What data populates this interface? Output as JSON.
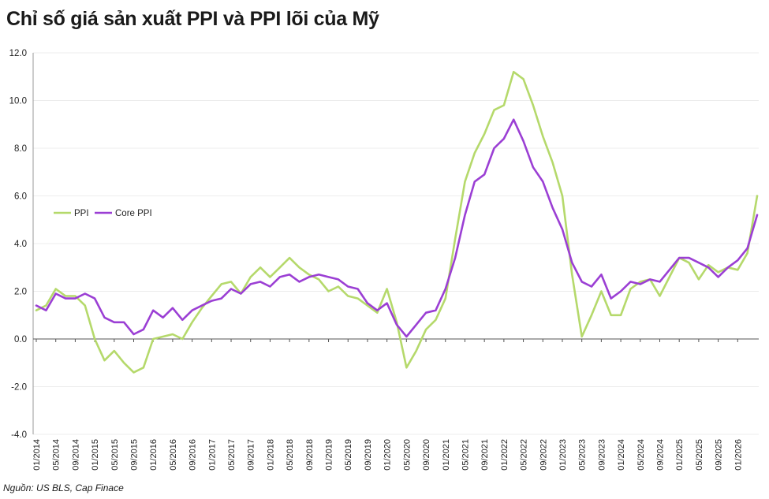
{
  "title": "Chỉ số giá sản xuất PPI và PPI lõi của Mỹ",
  "source": "Nguồn: US BLS, Cap Finace",
  "chart_data": {
    "type": "line",
    "title": "Chỉ số giá sản xuất PPI và PPI lõi của Mỹ",
    "xlabel": "",
    "ylabel": "",
    "ylim": [
      -4.0,
      12.0
    ],
    "yticks": [
      -4.0,
      -2.0,
      0.0,
      2.0,
      4.0,
      6.0,
      8.0,
      10.0,
      12.0
    ],
    "ytick_labels": [
      "-4.0",
      "-2.0",
      "0.0",
      "2.0",
      "4.0",
      "6.0",
      "8.0",
      "10.0",
      "12.0"
    ],
    "x_start": "2014-01",
    "x_end": "2026-05",
    "xtick_labels": [
      "01/2014",
      "05/2014",
      "09/2014",
      "01/2015",
      "05/2015",
      "09/2015",
      "01/2016",
      "05/2016",
      "09/2016",
      "01/2017",
      "05/2017",
      "09/2017",
      "01/2018",
      "05/2018",
      "09/2018",
      "01/2019",
      "05/2019",
      "09/2019",
      "01/2020",
      "05/2020",
      "09/2020",
      "01/2021",
      "05/2021",
      "09/2021",
      "01/2022",
      "05/2022",
      "09/2022",
      "01/2023",
      "05/2023",
      "09/2023",
      "01/2024",
      "05/2024",
      "09/2024",
      "01/2025",
      "05/2025",
      "09/2025",
      "01/2026"
    ],
    "grid": true,
    "legend": "left-middle",
    "colors": {
      "PPI": "#b5d96b",
      "Core PPI": "#9b3fd4"
    },
    "series": [
      {
        "name": "PPI",
        "x": [
          "2014-01",
          "2014-03",
          "2014-05",
          "2014-07",
          "2014-09",
          "2014-11",
          "2015-01",
          "2015-03",
          "2015-05",
          "2015-07",
          "2015-09",
          "2015-11",
          "2016-01",
          "2016-03",
          "2016-05",
          "2016-07",
          "2016-09",
          "2016-11",
          "2017-01",
          "2017-03",
          "2017-05",
          "2017-07",
          "2017-09",
          "2017-11",
          "2018-01",
          "2018-03",
          "2018-05",
          "2018-07",
          "2018-09",
          "2018-11",
          "2019-01",
          "2019-03",
          "2019-05",
          "2019-07",
          "2019-09",
          "2019-11",
          "2020-01",
          "2020-03",
          "2020-05",
          "2020-07",
          "2020-09",
          "2020-11",
          "2021-01",
          "2021-03",
          "2021-05",
          "2021-07",
          "2021-09",
          "2021-11",
          "2022-01",
          "2022-03",
          "2022-05",
          "2022-07",
          "2022-09",
          "2022-11",
          "2023-01",
          "2023-03",
          "2023-05",
          "2023-07",
          "2023-09",
          "2023-11",
          "2024-01",
          "2024-03",
          "2024-05",
          "2024-07",
          "2024-09",
          "2024-11",
          "2025-01",
          "2025-03",
          "2025-05",
          "2025-07",
          "2025-09",
          "2025-11",
          "2026-01",
          "2026-03",
          "2026-05"
        ],
        "values": [
          1.2,
          1.4,
          2.1,
          1.8,
          1.8,
          1.4,
          0.0,
          -0.9,
          -0.5,
          -1.0,
          -1.4,
          -1.2,
          0.0,
          0.1,
          0.2,
          0.0,
          0.7,
          1.3,
          1.8,
          2.3,
          2.4,
          1.9,
          2.6,
          3.0,
          2.6,
          3.0,
          3.4,
          3.0,
          2.7,
          2.5,
          2.0,
          2.2,
          1.8,
          1.7,
          1.4,
          1.1,
          2.1,
          0.7,
          -1.2,
          -0.5,
          0.4,
          0.8,
          1.7,
          4.2,
          6.6,
          7.8,
          8.6,
          9.6,
          9.8,
          11.2,
          10.9,
          9.8,
          8.5,
          7.4,
          6.0,
          2.7,
          0.1,
          1.0,
          2.0,
          1.0,
          1.0,
          2.1,
          2.4,
          2.5,
          1.8,
          2.6,
          3.4,
          3.2,
          2.5,
          3.1,
          2.8,
          3.0,
          2.9,
          3.6,
          6.0
        ]
      },
      {
        "name": "Core PPI",
        "x": [
          "2014-01",
          "2014-03",
          "2014-05",
          "2014-07",
          "2014-09",
          "2014-11",
          "2015-01",
          "2015-03",
          "2015-05",
          "2015-07",
          "2015-09",
          "2015-11",
          "2016-01",
          "2016-03",
          "2016-05",
          "2016-07",
          "2016-09",
          "2016-11",
          "2017-01",
          "2017-03",
          "2017-05",
          "2017-07",
          "2017-09",
          "2017-11",
          "2018-01",
          "2018-03",
          "2018-05",
          "2018-07",
          "2018-09",
          "2018-11",
          "2019-01",
          "2019-03",
          "2019-05",
          "2019-07",
          "2019-09",
          "2019-11",
          "2020-01",
          "2020-03",
          "2020-05",
          "2020-07",
          "2020-09",
          "2020-11",
          "2021-01",
          "2021-03",
          "2021-05",
          "2021-07",
          "2021-09",
          "2021-11",
          "2022-01",
          "2022-03",
          "2022-05",
          "2022-07",
          "2022-09",
          "2022-11",
          "2023-01",
          "2023-03",
          "2023-05",
          "2023-07",
          "2023-09",
          "2023-11",
          "2024-01",
          "2024-03",
          "2024-05",
          "2024-07",
          "2024-09",
          "2024-11",
          "2025-01",
          "2025-03",
          "2025-05",
          "2025-07",
          "2025-09",
          "2025-11",
          "2026-01",
          "2026-03",
          "2026-05"
        ],
        "values": [
          1.4,
          1.2,
          1.9,
          1.7,
          1.7,
          1.9,
          1.7,
          0.9,
          0.7,
          0.7,
          0.2,
          0.4,
          1.2,
          0.9,
          1.3,
          0.8,
          1.2,
          1.4,
          1.6,
          1.7,
          2.1,
          1.9,
          2.3,
          2.4,
          2.2,
          2.6,
          2.7,
          2.4,
          2.6,
          2.7,
          2.6,
          2.5,
          2.2,
          2.1,
          1.5,
          1.2,
          1.5,
          0.6,
          0.1,
          0.6,
          1.1,
          1.2,
          2.1,
          3.4,
          5.2,
          6.6,
          6.9,
          8.0,
          8.4,
          9.2,
          8.3,
          7.2,
          6.6,
          5.5,
          4.6,
          3.2,
          2.4,
          2.2,
          2.7,
          1.7,
          2.0,
          2.4,
          2.3,
          2.5,
          2.4,
          2.9,
          3.4,
          3.4,
          3.2,
          3.0,
          2.6,
          3.0,
          3.3,
          3.8,
          5.2
        ]
      }
    ]
  }
}
